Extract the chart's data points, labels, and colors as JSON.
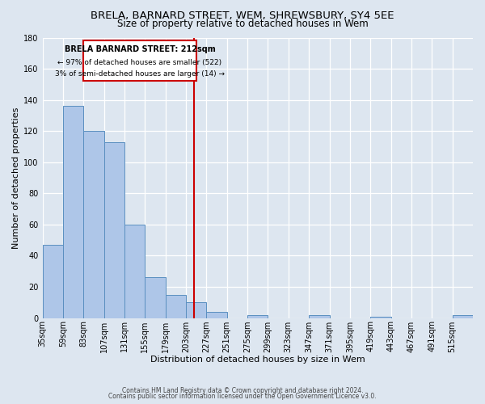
{
  "title1": "BRELA, BARNARD STREET, WEM, SHREWSBURY, SY4 5EE",
  "title2": "Size of property relative to detached houses in Wem",
  "xlabel": "Distribution of detached houses by size in Wem",
  "ylabel": "Number of detached properties",
  "footnote1": "Contains HM Land Registry data © Crown copyright and database right 2024.",
  "footnote2": "Contains public sector information licensed under the Open Government Licence v3.0.",
  "bin_labels": [
    "35sqm",
    "59sqm",
    "83sqm",
    "107sqm",
    "131sqm",
    "155sqm",
    "179sqm",
    "203sqm",
    "227sqm",
    "251sqm",
    "275sqm",
    "299sqm",
    "323sqm",
    "347sqm",
    "371sqm",
    "395sqm",
    "419sqm",
    "443sqm",
    "467sqm",
    "491sqm",
    "515sqm"
  ],
  "bin_edges": [
    35,
    59,
    83,
    107,
    131,
    155,
    179,
    203,
    227,
    251,
    275,
    299,
    323,
    347,
    371,
    395,
    419,
    443,
    467,
    491,
    515,
    539
  ],
  "bar_heights": [
    47,
    136,
    120,
    113,
    60,
    26,
    15,
    10,
    4,
    0,
    2,
    0,
    0,
    2,
    0,
    0,
    1,
    0,
    0,
    0,
    2
  ],
  "bar_color": "#aec6e8",
  "bar_edge_color": "#5a8fc0",
  "property_size": 212,
  "property_label": "BRELA BARNARD STREET: 212sqm",
  "pct_smaller": "97% of detached houses are smaller (522)",
  "pct_larger": "3% of semi-detached houses are larger (14)",
  "vline_color": "#cc0000",
  "annotation_box_edge": "#cc0000",
  "ylim": [
    0,
    180
  ],
  "yticks": [
    0,
    20,
    40,
    60,
    80,
    100,
    120,
    140,
    160,
    180
  ],
  "background_color": "#dde6f0",
  "grid_color": "#ffffff",
  "title1_fontsize": 9.5,
  "title2_fontsize": 8.5,
  "axis_fontsize": 8,
  "tick_fontsize": 7
}
